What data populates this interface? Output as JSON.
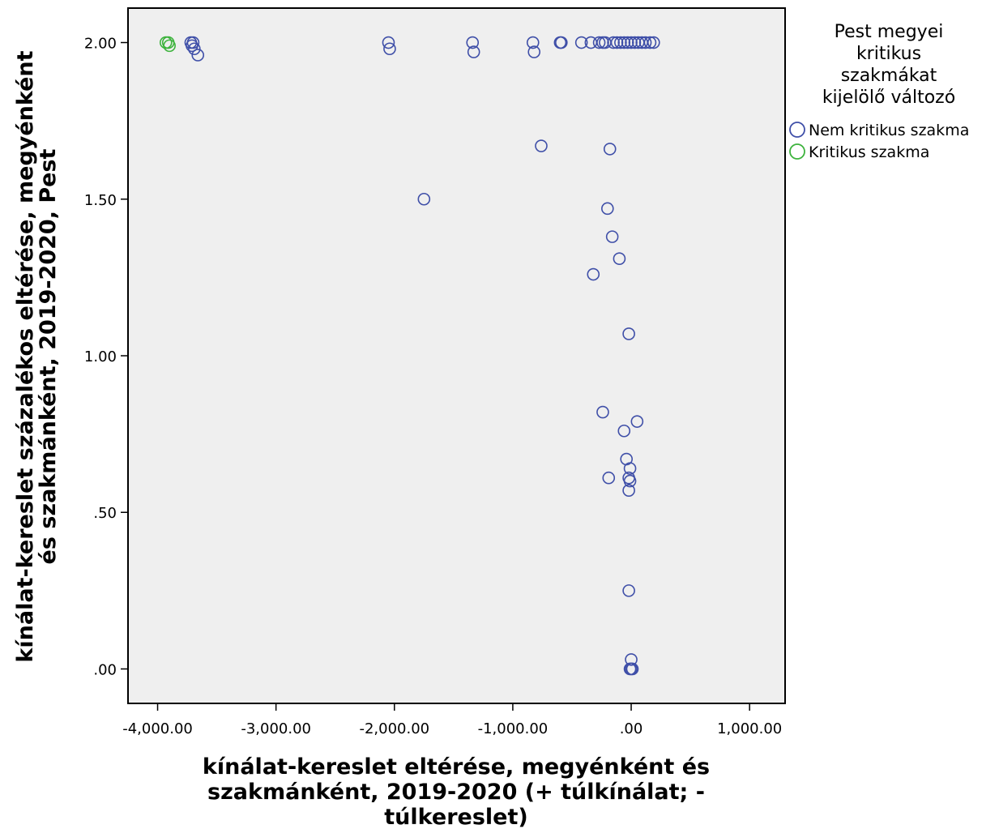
{
  "colors": {
    "plot_background": "#efefef",
    "frame": "#000000",
    "series_nem_kritikus": "#3f4fa8",
    "series_kritikus": "#3db33d"
  },
  "chart_data": {
    "type": "scatter",
    "title": "",
    "xlabel_lines": [
      "kínálat-kereslet eltérése, megyénként és",
      "szakmánként, 2019-2020 (+ túlkínálat; -",
      "túlkereslet)"
    ],
    "ylabel_lines": [
      "kínálat-kereslet százalékos eltérése, megyénként",
      "és szakmánként, 2019-2020, Pest"
    ],
    "xlim": [
      -4250,
      1300
    ],
    "ylim": [
      -0.11,
      2.11
    ],
    "x_ticks": [
      -4000,
      -3000,
      -2000,
      -1000,
      0,
      1000
    ],
    "x_tick_labels": [
      "-4,000.00",
      "-3,000.00",
      "-2,000.00",
      "-1,000.00",
      ".00",
      "1,000.00"
    ],
    "y_ticks": [
      0,
      0.5,
      1,
      1.5,
      2
    ],
    "y_tick_labels": [
      ".00",
      ".50",
      "1.00",
      "1.50",
      "2.00"
    ],
    "grid": false,
    "legend_position": "top-right, outside plot",
    "legend_title_lines": [
      "Pest megyei",
      "kritikus",
      "szakmákat",
      "kijelölő változó"
    ],
    "series": [
      {
        "name": "Nem kritikus szakma",
        "marker": "hollow-circle",
        "points": [
          [
            -3720,
            2.0
          ],
          [
            -3700,
            2.0
          ],
          [
            -3710,
            1.99
          ],
          [
            -3690,
            1.98
          ],
          [
            -3660,
            1.96
          ],
          [
            -2050,
            2.0
          ],
          [
            -2040,
            1.98
          ],
          [
            -1340,
            2.0
          ],
          [
            -1330,
            1.97
          ],
          [
            -830,
            2.0
          ],
          [
            -820,
            1.97
          ],
          [
            -600,
            2.0
          ],
          [
            -590,
            2.0
          ],
          [
            -420,
            2.0
          ],
          [
            -340,
            2.0
          ],
          [
            -270,
            2.0
          ],
          [
            -240,
            2.0
          ],
          [
            -220,
            2.0
          ],
          [
            -150,
            2.0
          ],
          [
            -120,
            2.0
          ],
          [
            -90,
            2.0
          ],
          [
            -60,
            2.0
          ],
          [
            -30,
            2.0
          ],
          [
            0,
            2.0
          ],
          [
            30,
            2.0
          ],
          [
            60,
            2.0
          ],
          [
            90,
            2.0
          ],
          [
            120,
            2.0
          ],
          [
            160,
            2.0
          ],
          [
            190,
            2.0
          ],
          [
            -760,
            1.67
          ],
          [
            -180,
            1.66
          ],
          [
            -1750,
            1.5
          ],
          [
            -200,
            1.47
          ],
          [
            -160,
            1.38
          ],
          [
            -100,
            1.31
          ],
          [
            -320,
            1.26
          ],
          [
            -20,
            1.07
          ],
          [
            -240,
            0.82
          ],
          [
            50,
            0.79
          ],
          [
            -60,
            0.76
          ],
          [
            -40,
            0.67
          ],
          [
            -10,
            0.64
          ],
          [
            -20,
            0.61
          ],
          [
            -10,
            0.6
          ],
          [
            -190,
            0.61
          ],
          [
            -20,
            0.57
          ],
          [
            -20,
            0.25
          ],
          [
            0,
            0.03
          ],
          [
            -10,
            0.0
          ],
          [
            0,
            0.0
          ],
          [
            10,
            0.0
          ]
        ]
      },
      {
        "name": "Kritikus szakma",
        "marker": "hollow-circle",
        "points": [
          [
            -3930,
            2.0
          ],
          [
            -3910,
            2.0
          ],
          [
            -3900,
            1.99
          ]
        ]
      }
    ]
  }
}
